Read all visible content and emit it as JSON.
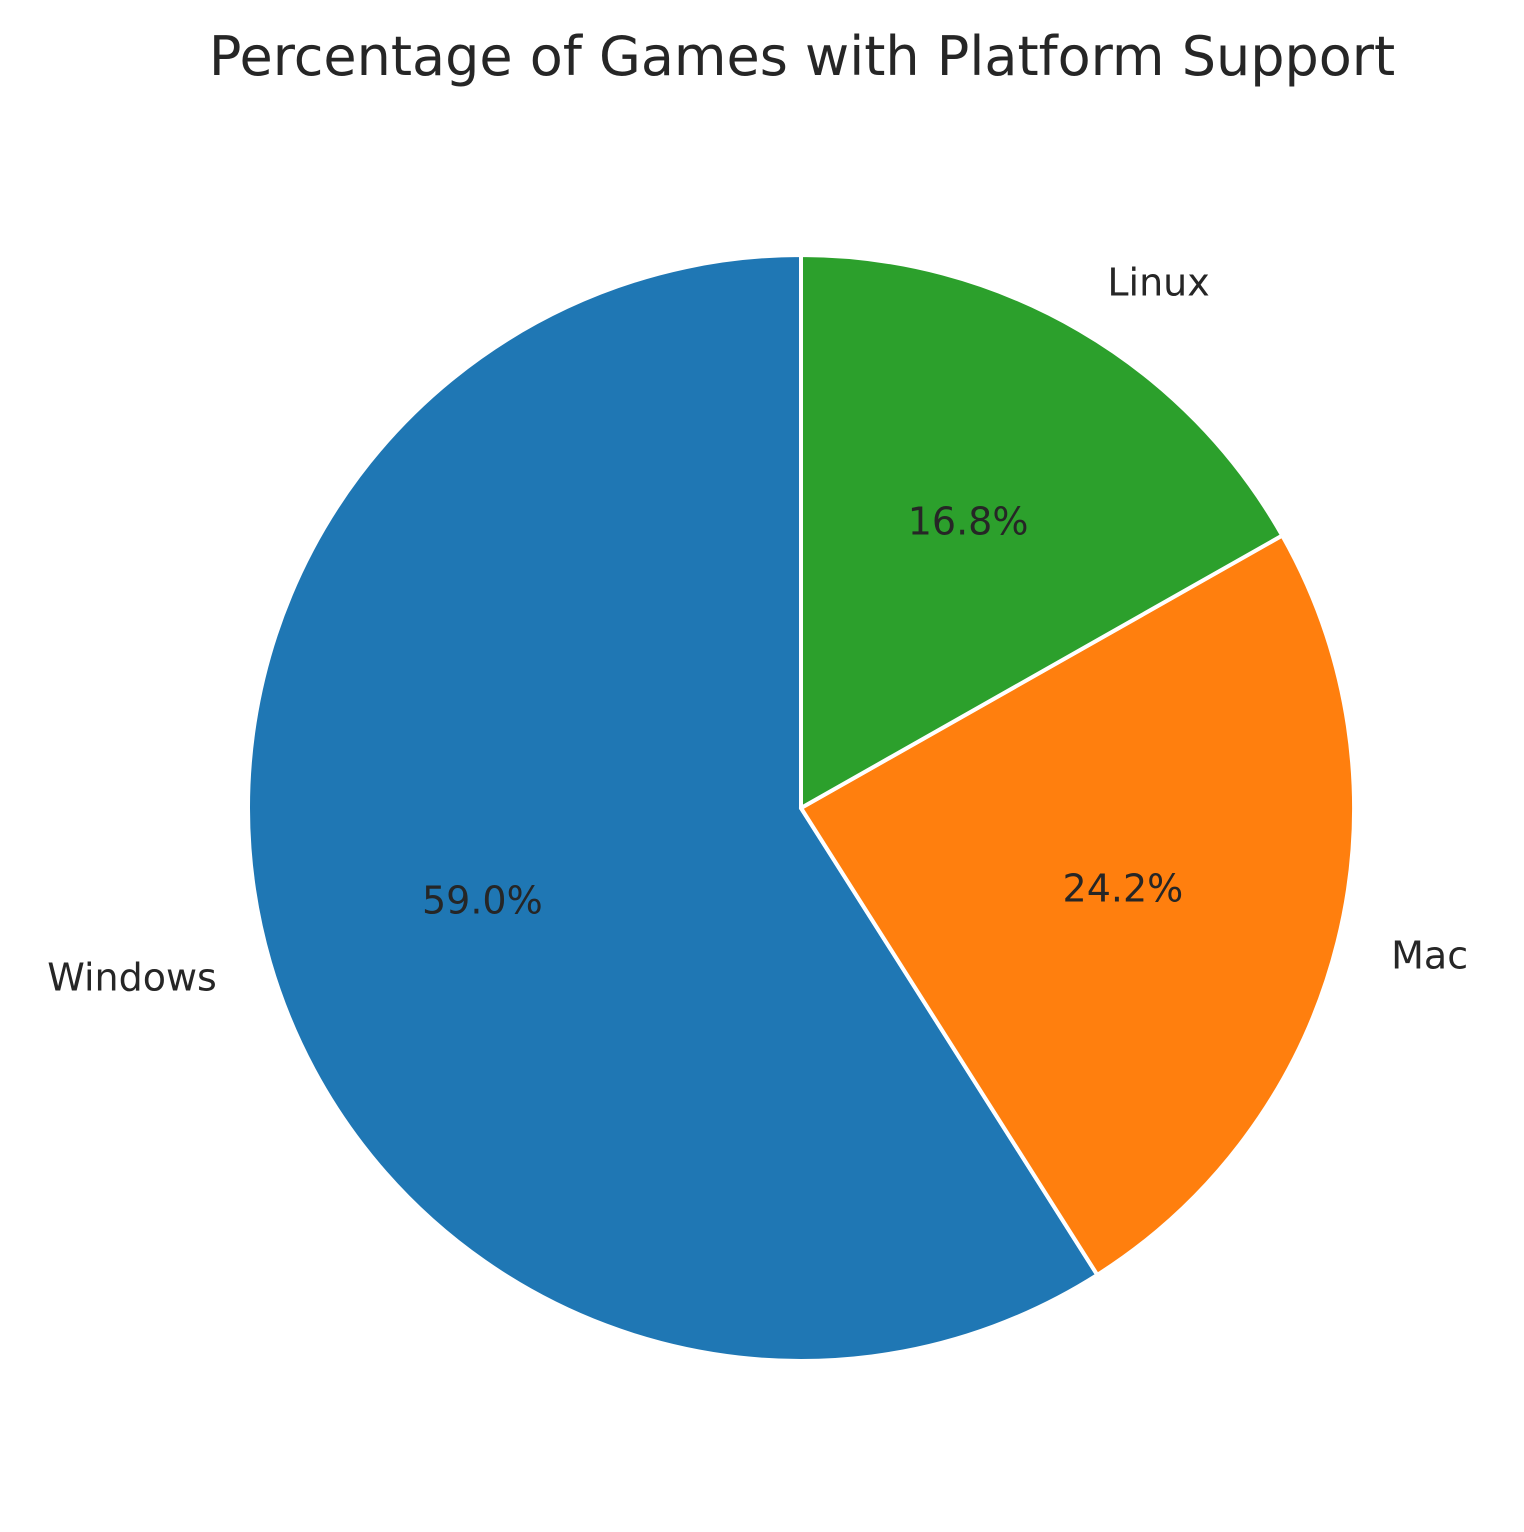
{
  "chart_data": {
    "type": "pie",
    "title": "Percentage of Games with Platform Support",
    "start_angle_deg": 90,
    "direction": "counterclockwise",
    "slices": [
      {
        "label": "Windows",
        "value": 59.0,
        "pct_label": "59.0%",
        "color": "#1f77b4"
      },
      {
        "label": "Mac",
        "value": 24.2,
        "pct_label": "24.2%",
        "color": "#ff7f0e"
      },
      {
        "label": "Linux",
        "value": 16.8,
        "pct_label": "16.8%",
        "color": "#2ca02c"
      }
    ]
  }
}
